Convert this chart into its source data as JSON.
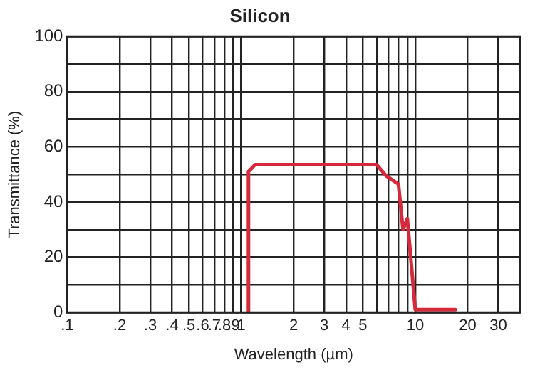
{
  "chart_data": {
    "type": "line",
    "title": "Silicon",
    "xlabel": "Wavelength (µm)",
    "ylabel": "Transmittance (%)",
    "log": "x",
    "x": [
      1.1,
      1.1,
      1.2,
      6,
      6.8,
      8,
      8.5,
      9,
      10,
      17
    ],
    "series": [
      {
        "color": "#d42a3c",
        "values": [
          0,
          51,
          53.5,
          53.5,
          49.5,
          46.5,
          30,
          34,
          1,
          1
        ]
      }
    ],
    "xlim": [
      0.1,
      40
    ],
    "xticks": [
      {
        "value": 0.1,
        "label": ".1"
      },
      {
        "value": 0.2,
        "label": ".2"
      },
      {
        "value": 0.3,
        "label": ".3"
      },
      {
        "value": 0.4,
        "label": ".4"
      },
      {
        "value": 0.5,
        "label": ".5"
      },
      {
        "value": 0.6,
        "label": ".6"
      },
      {
        "value": 0.7,
        "label": ".7"
      },
      {
        "value": 0.8,
        "label": ".8"
      },
      {
        "value": 0.9,
        "label": ".9"
      },
      1,
      2,
      3,
      4,
      5,
      {
        "value": 6,
        "label": null
      },
      {
        "value": 7,
        "label": null
      },
      {
        "value": 8,
        "label": null
      },
      {
        "value": 9,
        "label": null
      },
      10,
      20,
      30
    ],
    "ylim": [
      0,
      100
    ],
    "yticks": [
      0,
      {
        "value": 10,
        "label": null
      },
      20,
      {
        "value": 30,
        "label": null
      },
      40,
      {
        "value": 50,
        "label": null
      },
      60,
      {
        "value": 70,
        "label": null
      },
      80,
      {
        "value": 90,
        "label": null
      },
      100
    ],
    "grid": true,
    "marker": "none",
    "line_style": "solid"
  }
}
